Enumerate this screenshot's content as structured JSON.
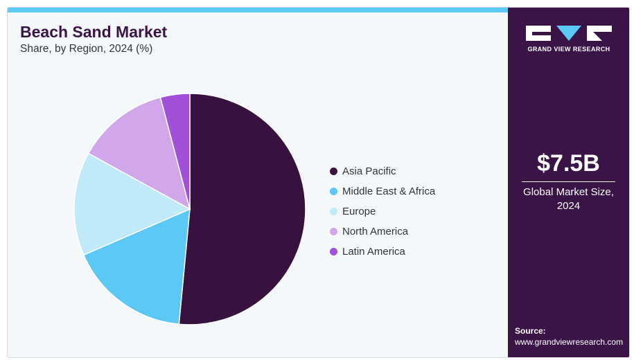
{
  "title": "Beach Sand Market",
  "subtitle": "Share, by Region, 2024 (%)",
  "colors": {
    "accent_bar": "#5bc8f5",
    "panel": "#3a1447"
  },
  "chart_data": {
    "type": "pie",
    "title": "Beach Sand Market",
    "subtitle": "Share, by Region, 2024 (%)",
    "legend_position": "right",
    "slices": [
      {
        "label": "Asia Pacific",
        "value": 51.5,
        "color": "#37113f"
      },
      {
        "label": "Middle East & Africa",
        "value": 17.0,
        "color": "#5bc8f5"
      },
      {
        "label": "Europe",
        "value": 14.5,
        "color": "#c0e9f9"
      },
      {
        "label": "North America",
        "value": 12.9,
        "color": "#d2a6ea"
      },
      {
        "label": "Latin America",
        "value": 4.1,
        "color": "#a24fd9"
      }
    ]
  },
  "panel": {
    "logo_text": "GRAND VIEW RESEARCH",
    "market_size": "$7.5B",
    "market_size_label": "Global Market Size, 2024",
    "source_label": "Source:",
    "source_url": "www.grandviewresearch.com"
  }
}
